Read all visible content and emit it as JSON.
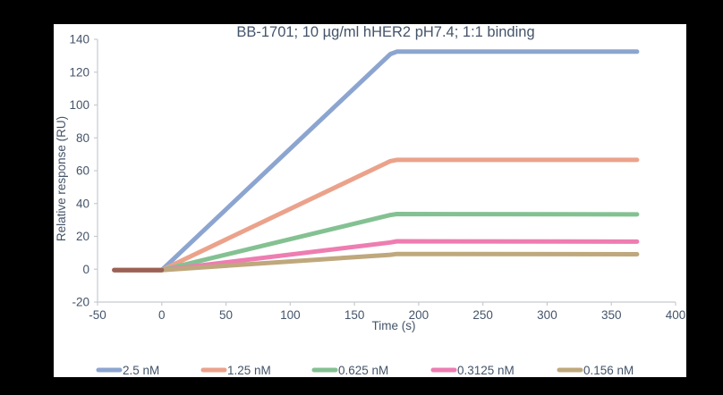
{
  "page": {
    "background_color": "#000000",
    "panel_background_color": "#FFFFFF"
  },
  "chart_data": {
    "type": "line",
    "title": "BB-1701; 10 µg/ml hHER2 pH7.4; 1:1 binding",
    "xlabel": "Time (s)",
    "ylabel": "Relative response (RU)",
    "xlim": [
      -50,
      400
    ],
    "ylim": [
      -20,
      140
    ],
    "x_ticks": [
      -50,
      0,
      50,
      100,
      150,
      200,
      250,
      300,
      350,
      400
    ],
    "y_ticks": [
      -20,
      0,
      20,
      40,
      60,
      80,
      100,
      120,
      140
    ],
    "grid": false,
    "legend_position": "bottom",
    "axis_color": "#C6CAD1",
    "text_color": "#44546A",
    "description": "SPR sensorgram: baseline from t=-37 to 0 s (all traces overlapping, appearing brown), linear association from t=0 to 180 s, flat dissociation plateau from t=180 to 370 s",
    "series": [
      {
        "name": "2.5 nM",
        "color": "#8CA5D0",
        "points": [
          [
            -37,
            -0.5
          ],
          [
            0,
            -0.5
          ],
          [
            178,
            131.0
          ],
          [
            183,
            132.5
          ],
          [
            370,
            132.5
          ]
        ]
      },
      {
        "name": "1.25 nM",
        "color": "#EBA28B",
        "points": [
          [
            -37,
            -0.5
          ],
          [
            0,
            -0.5
          ],
          [
            178,
            65.8
          ],
          [
            183,
            66.6
          ],
          [
            370,
            66.6
          ]
        ]
      },
      {
        "name": "0.625 nM",
        "color": "#84C192",
        "points": [
          [
            -37,
            -0.5
          ],
          [
            0,
            -0.5
          ],
          [
            178,
            33.0
          ],
          [
            183,
            33.6
          ],
          [
            370,
            33.4
          ]
        ]
      },
      {
        "name": "0.3125 nM",
        "color": "#EE7DB1",
        "points": [
          [
            -37,
            -0.5
          ],
          [
            0,
            -0.5
          ],
          [
            178,
            16.3
          ],
          [
            183,
            17.0
          ],
          [
            370,
            16.8
          ]
        ]
      },
      {
        "name": "0.156 nM",
        "color": "#BFA87D",
        "points": [
          [
            -37,
            -0.5
          ],
          [
            0,
            -0.5
          ],
          [
            178,
            8.8
          ],
          [
            183,
            9.3
          ],
          [
            370,
            9.1
          ]
        ]
      }
    ],
    "baseline_overlap": {
      "color": "#9C6156",
      "points": [
        [
          -37,
          -0.5
        ],
        [
          0,
          -0.5
        ]
      ]
    }
  }
}
